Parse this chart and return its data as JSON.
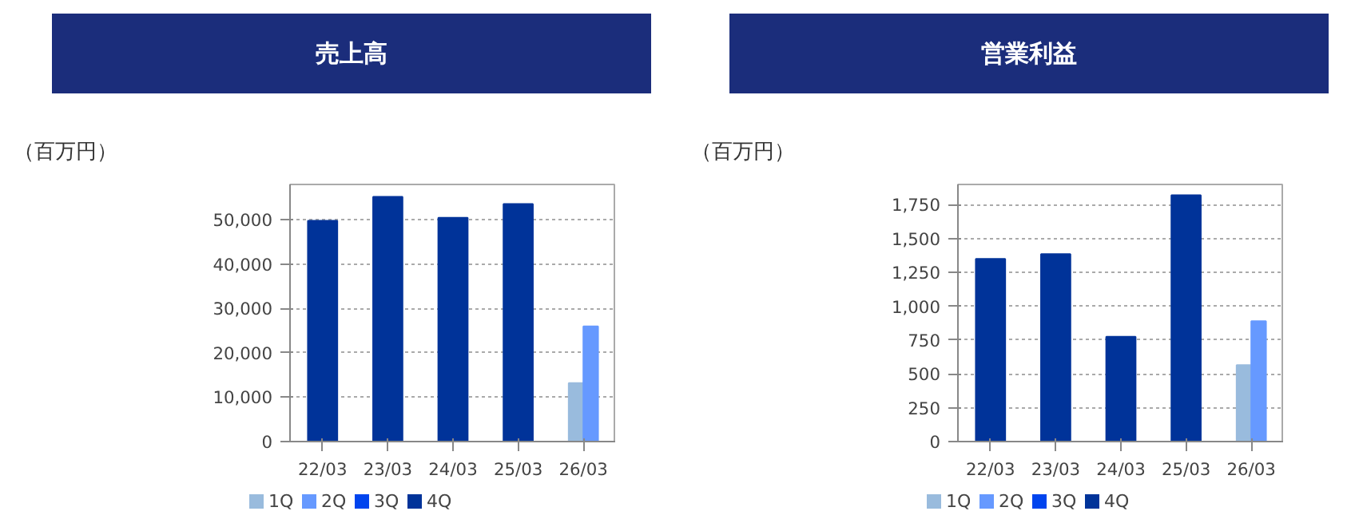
{
  "chart_data": [
    {
      "type": "bar",
      "title": "売上高",
      "ylabel": "（百万円）",
      "categories": [
        "22/03",
        "23/03",
        "24/03",
        "25/03",
        "26/03"
      ],
      "series": [
        {
          "name": "1Q",
          "color": "#99bbdd",
          "values": [
            null,
            null,
            null,
            null,
            13200
          ]
        },
        {
          "name": "2Q",
          "color": "#6699ff",
          "values": [
            null,
            null,
            null,
            null,
            26000
          ]
        },
        {
          "name": "3Q",
          "color": "#0044ee",
          "values": [
            null,
            null,
            null,
            null,
            null
          ]
        },
        {
          "name": "4Q",
          "color": "#003399",
          "values": [
            49800,
            55200,
            50500,
            53600,
            null
          ]
        }
      ],
      "ylim": [
        0,
        58000
      ],
      "yticks": [
        {
          "value": 0,
          "label": "0"
        },
        {
          "value": 10000,
          "label": "10,000"
        },
        {
          "value": 20000,
          "label": "20,000"
        },
        {
          "value": 30000,
          "label": "30,000"
        },
        {
          "value": 40000,
          "label": "40,000"
        },
        {
          "value": 50000,
          "label": "50,000"
        }
      ],
      "grid": "y",
      "legend": "bottom"
    },
    {
      "type": "bar",
      "title": "営業利益",
      "ylabel": "（百万円）",
      "categories": [
        "22/03",
        "23/03",
        "24/03",
        "25/03",
        "26/03"
      ],
      "series": [
        {
          "name": "1Q",
          "color": "#99bbdd",
          "values": [
            null,
            null,
            null,
            null,
            565
          ]
        },
        {
          "name": "2Q",
          "color": "#6699ff",
          "values": [
            null,
            null,
            null,
            null,
            890
          ]
        },
        {
          "name": "3Q",
          "color": "#0044ee",
          "values": [
            null,
            null,
            null,
            null,
            null
          ]
        },
        {
          "name": "4Q",
          "color": "#003399",
          "values": [
            1350,
            1385,
            775,
            1820,
            null
          ]
        }
      ],
      "ylim": [
        0,
        1900
      ],
      "yticks": [
        {
          "value": 0,
          "label": "0"
        },
        {
          "value": 250,
          "label": "250"
        },
        {
          "value": 500,
          "label": "500"
        },
        {
          "value": 750,
          "label": "750"
        },
        {
          "value": 1000,
          "label": "1,000"
        },
        {
          "value": 1250,
          "label": "1,250"
        },
        {
          "value": 1500,
          "label": "1,500"
        },
        {
          "value": 1750,
          "label": "1,750"
        }
      ],
      "grid": "y",
      "legend": "bottom"
    }
  ]
}
